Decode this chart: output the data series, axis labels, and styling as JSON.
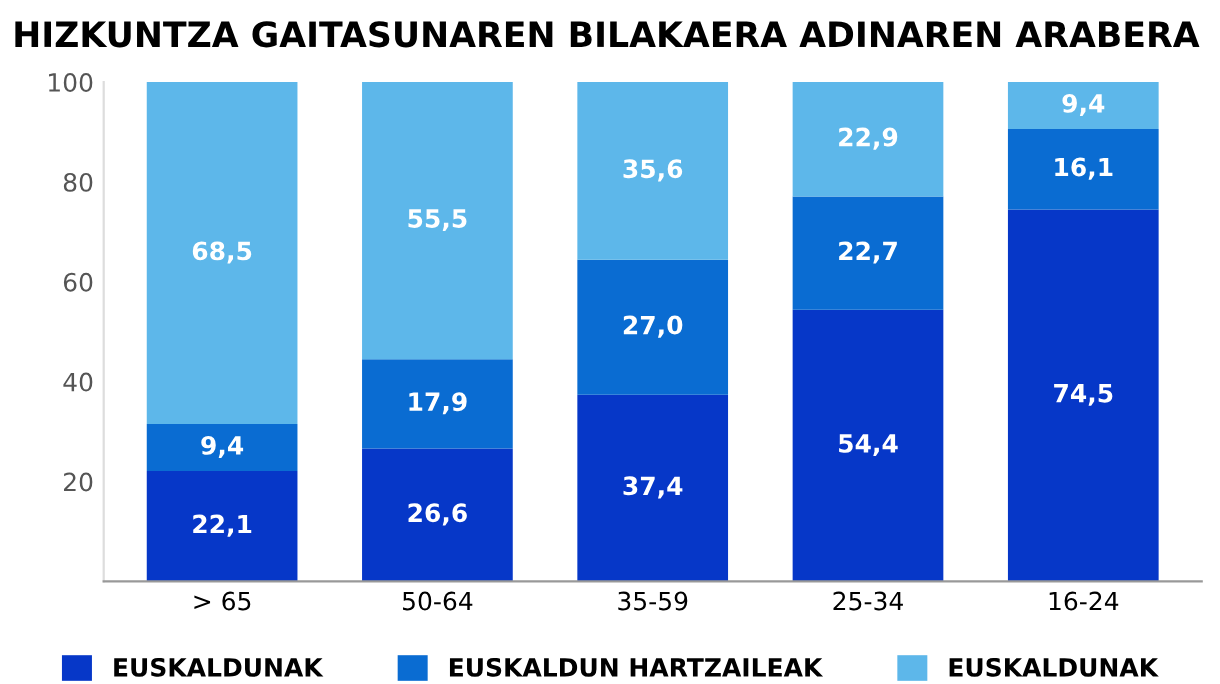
{
  "chart_data": {
    "type": "bar",
    "stacked": true,
    "title": "HIZKUNTZA GAITASUNAREN BILAKAERA ADINAREN ARABERA",
    "categories": [
      "> 65",
      "50-64",
      "35-59",
      "25-34",
      "16-24"
    ],
    "series": [
      {
        "name": "EUSKALDUNAK",
        "color": "#0637c8",
        "values": [
          22.1,
          26.6,
          37.4,
          54.4,
          74.5
        ],
        "value_labels": [
          "22,1",
          "26,6",
          "37,4",
          "54,4",
          "74,5"
        ]
      },
      {
        "name": "EUSKALDUN HARTZAILEAK",
        "color": "#0a6cd2",
        "values": [
          9.4,
          17.9,
          27.0,
          22.7,
          16.1
        ],
        "value_labels": [
          "9,4",
          "17,9",
          "27,0",
          "22,7",
          "16,1"
        ]
      },
      {
        "name": "EUSKALDUNAK",
        "color": "#5db7ea",
        "values": [
          68.5,
          55.5,
          35.6,
          22.9,
          9.4
        ],
        "value_labels": [
          "68,5",
          "55,5",
          "35,6",
          "22,9",
          "9,4"
        ]
      }
    ],
    "ylim": [
      0,
      100
    ],
    "yticks": [
      20,
      40,
      60,
      80,
      100
    ],
    "grid": false,
    "legend": "bottom"
  }
}
